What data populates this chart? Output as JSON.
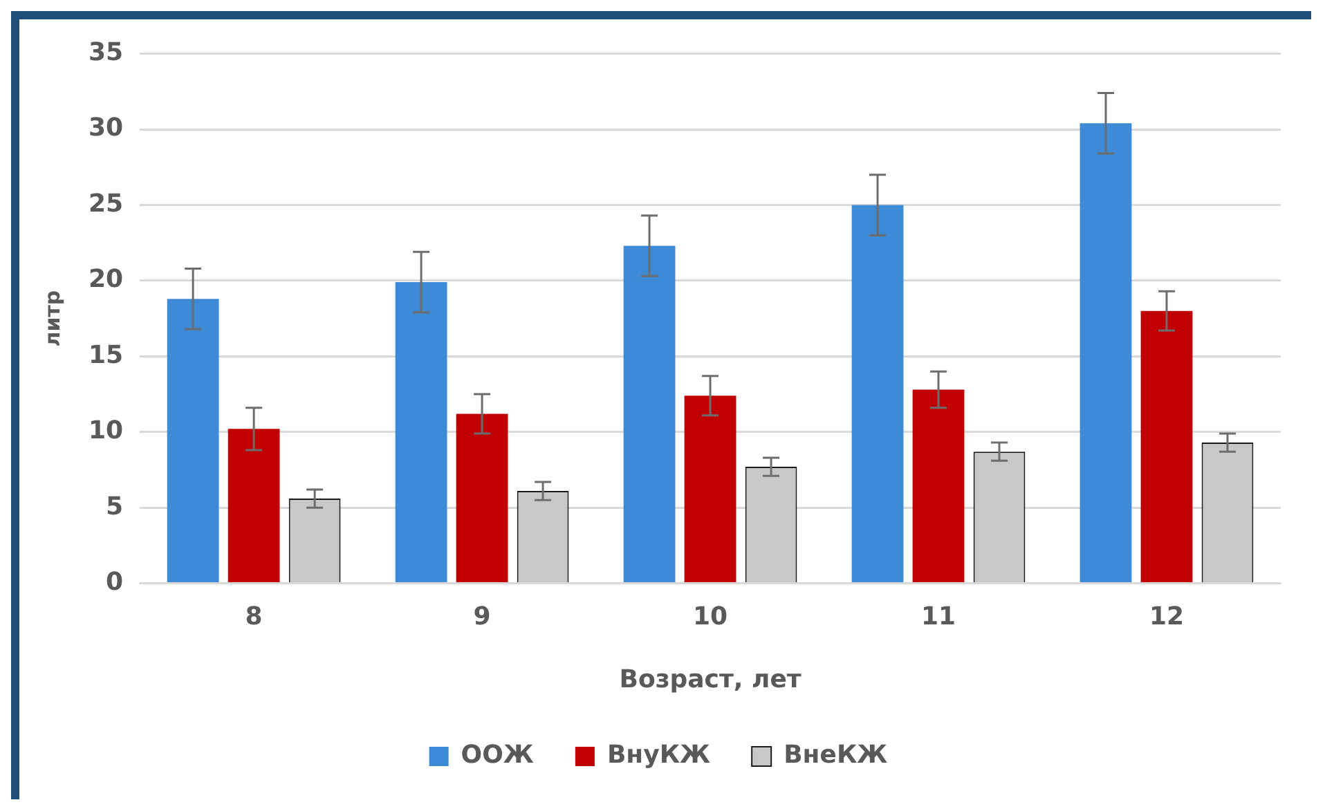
{
  "chart_data": {
    "type": "bar",
    "xlabel": "Возраст, лет",
    "ylabel": "литр",
    "categories": [
      "8",
      "9",
      "10",
      "11",
      "12"
    ],
    "series": [
      {
        "name": "ООЖ",
        "color": "#3d8ad6",
        "values": [
          18.8,
          19.9,
          22.3,
          25.0,
          30.4
        ],
        "errors": [
          2.0,
          2.0,
          2.0,
          2.0,
          2.0
        ]
      },
      {
        "name": "ВнуКЖ",
        "color": "#c00000",
        "values": [
          10.2,
          11.2,
          12.4,
          12.8,
          18.0
        ],
        "errors": [
          1.4,
          1.3,
          1.3,
          1.2,
          1.3
        ]
      },
      {
        "name": "ВнеКЖ",
        "color": "#c8c8c8",
        "values": [
          5.6,
          6.1,
          7.7,
          8.7,
          9.3
        ],
        "errors": [
          0.6,
          0.6,
          0.6,
          0.6,
          0.6
        ]
      }
    ],
    "ylim": [
      0,
      35
    ],
    "yticks": [
      0,
      5,
      10,
      15,
      20,
      25,
      30,
      35
    ],
    "grid": "y",
    "legend": "bottom"
  }
}
